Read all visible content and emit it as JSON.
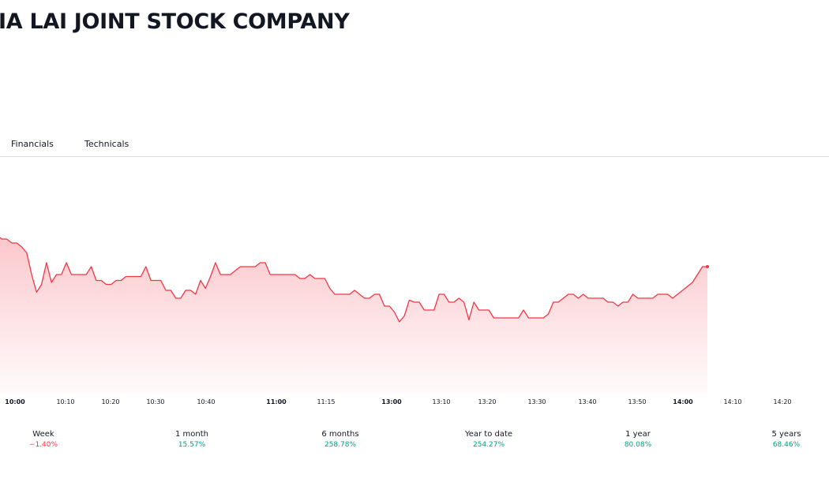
{
  "header": {
    "title": "IA LAI JOINT STOCK COMPANY"
  },
  "tabs": [
    {
      "label": "Financials"
    },
    {
      "label": "Technicals"
    }
  ],
  "colors": {
    "line": "#f23645",
    "positive": "#089981",
    "negative": "#f23645"
  },
  "chart_data": {
    "type": "area",
    "xlabel": "",
    "ylabel": "",
    "x_ticks": [
      "10:00",
      "10:10",
      "10:20",
      "10:30",
      "10:40",
      "11:00",
      "11:15",
      "13:00",
      "13:10",
      "13:20",
      "13:30",
      "13:40",
      "13:50",
      "14:00",
      "14:10",
      "14:20"
    ],
    "major_ticks": [
      "10:00",
      "11:00",
      "13:00",
      "14:00"
    ],
    "grid": false,
    "series": [
      {
        "values": [
          80,
          78,
          78,
          76,
          76,
          74,
          71,
          60,
          51,
          55,
          66,
          56,
          60,
          60,
          66,
          60,
          60,
          60,
          60,
          64,
          57,
          57,
          55,
          55,
          57,
          57,
          59,
          59,
          59,
          59,
          64,
          57,
          57,
          57,
          52,
          52,
          48,
          48,
          52,
          52,
          50,
          57,
          53,
          59,
          66,
          60,
          60,
          60,
          62,
          64,
          64,
          64,
          64,
          66,
          66,
          60,
          60,
          60,
          60,
          60,
          60,
          58,
          58,
          60,
          58,
          58,
          58,
          53,
          50,
          50,
          50,
          50,
          52,
          50,
          48,
          48,
          50,
          50,
          44,
          44,
          41,
          36,
          39,
          47,
          46,
          46,
          42,
          42,
          42,
          50,
          50,
          46,
          46,
          48,
          46,
          37,
          46,
          42,
          42,
          42,
          38,
          38,
          38,
          38,
          38,
          38,
          42,
          38,
          38,
          38,
          38,
          40,
          46,
          46,
          48,
          50,
          50,
          48,
          50,
          48,
          48,
          48,
          48,
          46,
          46,
          44,
          46,
          46,
          50,
          48,
          48,
          48,
          48,
          50,
          50,
          50,
          48,
          50,
          52,
          54,
          56,
          60,
          64,
          64
        ]
      }
    ]
  },
  "performance": [
    {
      "label": "Week",
      "value": "−1.40%",
      "trend": "neg"
    },
    {
      "label": "1 month",
      "value": "15.57%",
      "trend": "pos"
    },
    {
      "label": "6 months",
      "value": "258.78%",
      "trend": "pos"
    },
    {
      "label": "Year to date",
      "value": "254.27%",
      "trend": "pos"
    },
    {
      "label": "1 year",
      "value": "80.08%",
      "trend": "pos"
    },
    {
      "label": "5 years",
      "value": "68.46%",
      "trend": "pos"
    }
  ]
}
